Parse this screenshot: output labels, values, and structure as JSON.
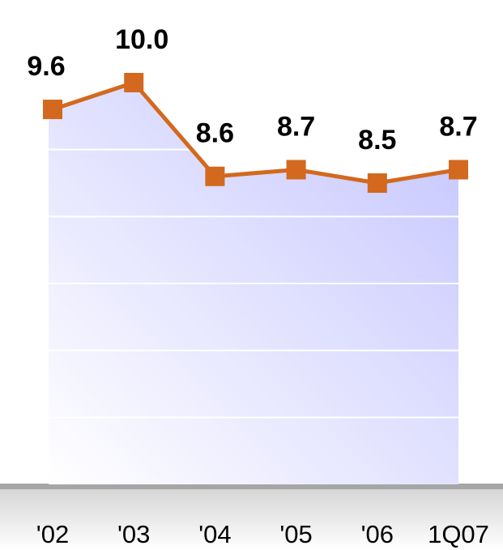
{
  "chart_data": {
    "type": "line",
    "categories": [
      "'02",
      "'03",
      "'04",
      "'05",
      "'06",
      "1Q07"
    ],
    "values": [
      9.6,
      10.0,
      8.6,
      8.7,
      8.5,
      8.7
    ],
    "value_labels": [
      "9.6",
      "10.0",
      "8.6",
      "8.7",
      "8.5",
      "8.7"
    ],
    "color": "#d2691e",
    "ylim": [
      4,
      10
    ],
    "yticks": [
      5,
      6,
      7,
      8,
      9
    ],
    "grid": true
  }
}
